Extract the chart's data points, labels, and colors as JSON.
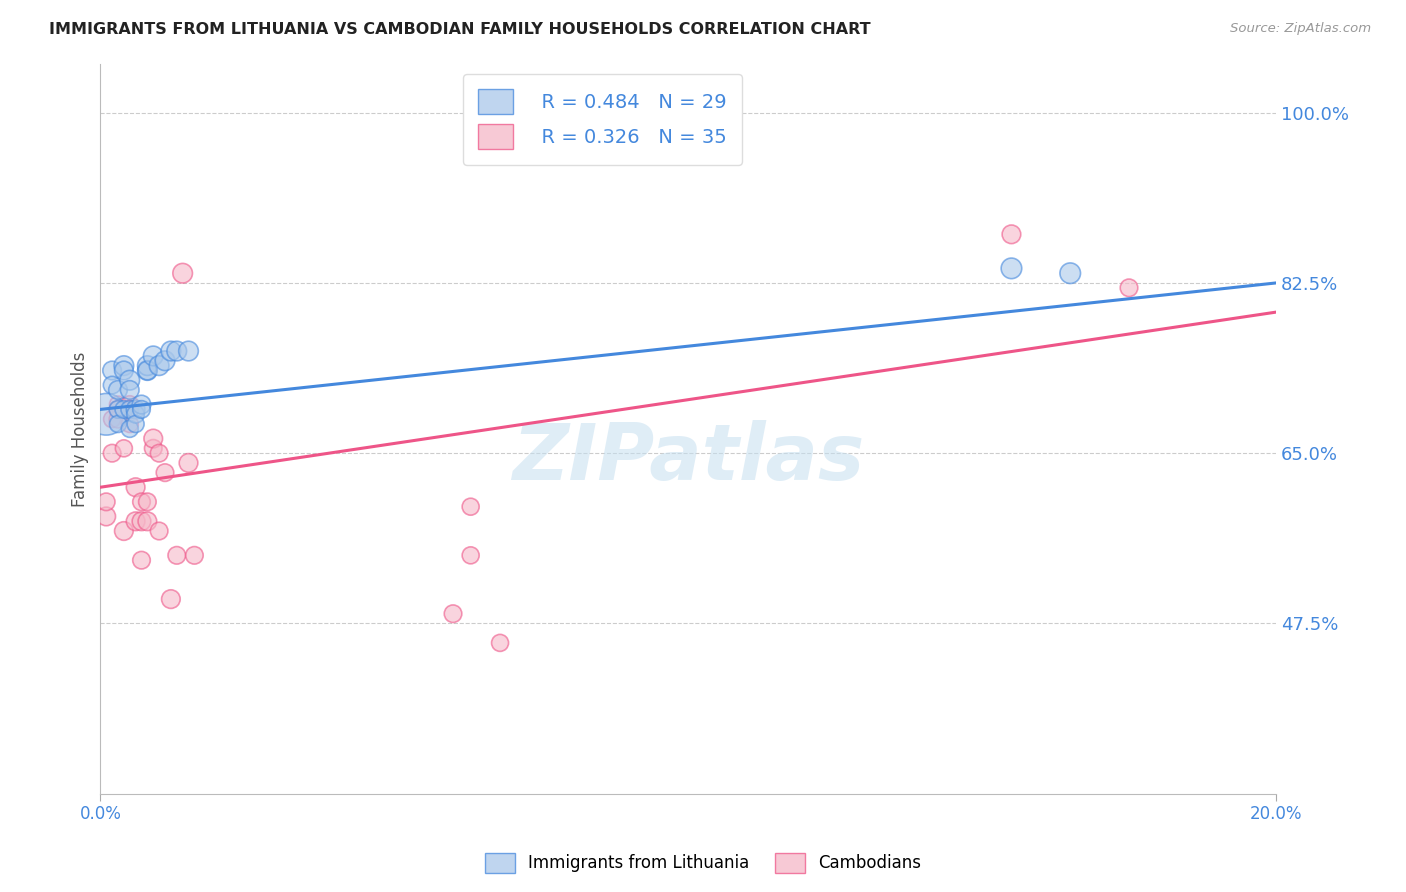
{
  "title": "IMMIGRANTS FROM LITHUANIA VS CAMBODIAN FAMILY HOUSEHOLDS CORRELATION CHART",
  "source": "Source: ZipAtlas.com",
  "ylabel": "Family Households",
  "ytick_labels": [
    "100.0%",
    "82.5%",
    "65.0%",
    "47.5%"
  ],
  "ytick_values": [
    1.0,
    0.825,
    0.65,
    0.475
  ],
  "xlim": [
    0.0,
    0.2
  ],
  "ylim": [
    0.3,
    1.05
  ],
  "legend_blue_r": "R = 0.484",
  "legend_blue_n": "N = 29",
  "legend_pink_r": "R = 0.326",
  "legend_pink_n": "N = 35",
  "legend_label_blue": "Immigrants from Lithuania",
  "legend_label_pink": "Cambodians",
  "blue_color": "#aac8ea",
  "pink_color": "#f5b8c8",
  "line_blue_color": "#4488dd",
  "line_pink_color": "#ee5588",
  "title_color": "#222222",
  "axis_label_color": "#4488dd",
  "blue_scatter_x": [
    0.001,
    0.002,
    0.002,
    0.003,
    0.003,
    0.003,
    0.004,
    0.004,
    0.004,
    0.005,
    0.005,
    0.005,
    0.005,
    0.006,
    0.006,
    0.006,
    0.007,
    0.007,
    0.008,
    0.008,
    0.008,
    0.009,
    0.01,
    0.011,
    0.012,
    0.013,
    0.015,
    0.155,
    0.165
  ],
  "blue_scatter_y": [
    0.69,
    0.735,
    0.72,
    0.715,
    0.695,
    0.68,
    0.74,
    0.735,
    0.695,
    0.725,
    0.715,
    0.695,
    0.675,
    0.695,
    0.69,
    0.68,
    0.7,
    0.695,
    0.735,
    0.74,
    0.735,
    0.75,
    0.74,
    0.745,
    0.755,
    0.755,
    0.755,
    0.84,
    0.835
  ],
  "blue_scatter_size": [
    900,
    180,
    160,
    180,
    160,
    150,
    200,
    180,
    160,
    200,
    180,
    160,
    150,
    180,
    160,
    150,
    180,
    160,
    200,
    200,
    180,
    200,
    200,
    200,
    200,
    200,
    200,
    220,
    220
  ],
  "pink_scatter_x": [
    0.001,
    0.001,
    0.002,
    0.002,
    0.003,
    0.003,
    0.003,
    0.004,
    0.004,
    0.005,
    0.005,
    0.005,
    0.006,
    0.006,
    0.007,
    0.007,
    0.007,
    0.008,
    0.008,
    0.009,
    0.009,
    0.01,
    0.01,
    0.011,
    0.012,
    0.013,
    0.014,
    0.015,
    0.016,
    0.06,
    0.063,
    0.063,
    0.068,
    0.155,
    0.175
  ],
  "pink_scatter_y": [
    0.585,
    0.6,
    0.65,
    0.685,
    0.685,
    0.7,
    0.695,
    0.57,
    0.655,
    0.7,
    0.695,
    0.68,
    0.615,
    0.58,
    0.58,
    0.6,
    0.54,
    0.6,
    0.58,
    0.655,
    0.665,
    0.65,
    0.57,
    0.63,
    0.5,
    0.545,
    0.835,
    0.64,
    0.545,
    0.485,
    0.545,
    0.595,
    0.455,
    0.875,
    0.82
  ],
  "pink_scatter_size": [
    180,
    160,
    160,
    150,
    160,
    150,
    150,
    180,
    150,
    160,
    150,
    150,
    180,
    180,
    180,
    160,
    160,
    160,
    180,
    160,
    180,
    160,
    160,
    160,
    180,
    160,
    200,
    180,
    160,
    160,
    150,
    150,
    150,
    180,
    160
  ],
  "blue_line_x0": 0.0,
  "blue_line_x1": 0.2,
  "blue_line_y0": 0.695,
  "blue_line_y1": 0.825,
  "pink_line_x0": 0.0,
  "pink_line_x1": 0.2,
  "pink_line_y0": 0.615,
  "pink_line_y1": 0.795
}
